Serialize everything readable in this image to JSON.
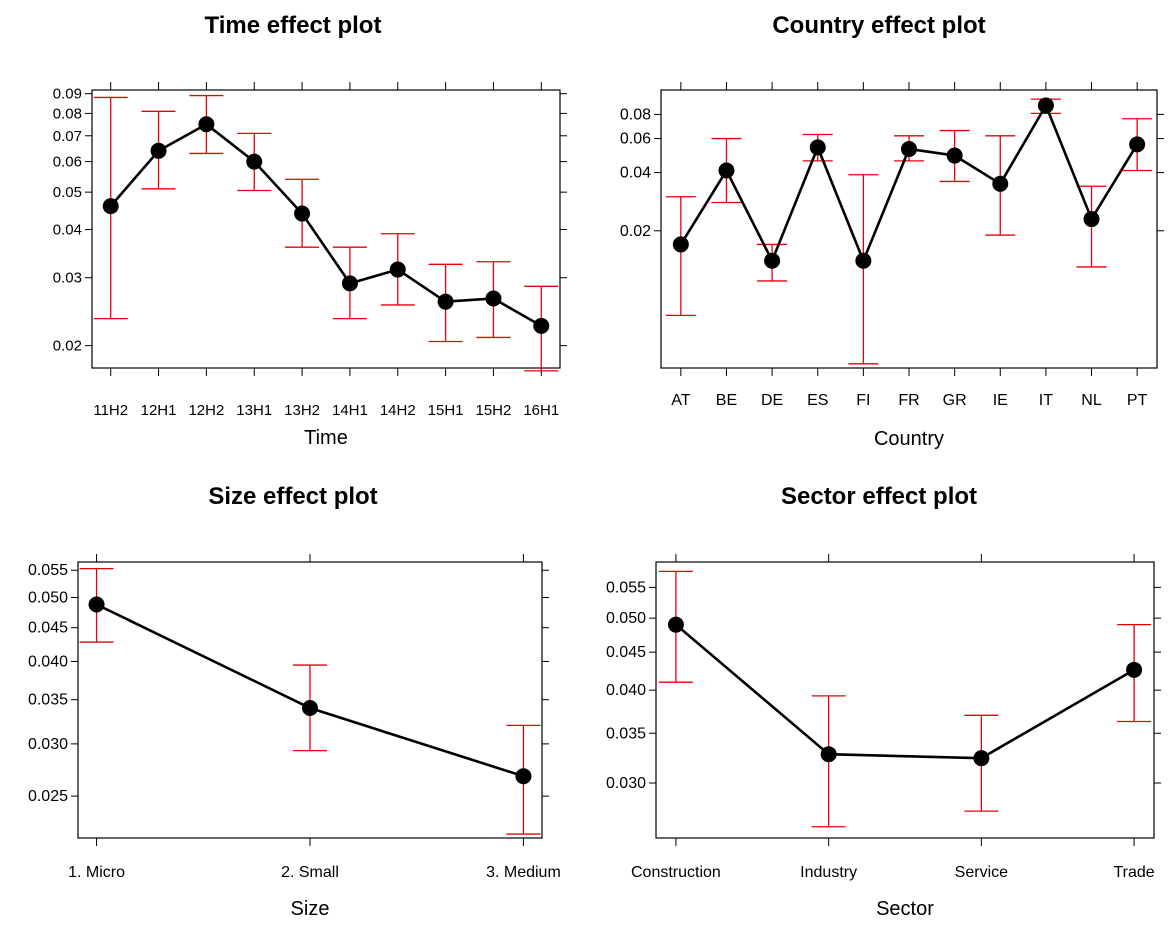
{
  "colors": {
    "line": "#000000",
    "errorbar": "#e8000b",
    "frame": "#000000",
    "background": "#ffffff"
  },
  "chart_data": [
    {
      "type": "line",
      "title": "Time effect plot",
      "xlabel": "Time",
      "ylabel": "",
      "log_scale_y": true,
      "ylim": [
        0.0175,
        0.092
      ],
      "yticks": [
        0.02,
        0.03,
        0.04,
        0.05,
        0.06,
        0.07,
        0.08,
        0.09
      ],
      "ytick_labels": [
        "0.02",
        "0.03",
        "0.04",
        "0.05",
        "0.06",
        "0.07",
        "0.08",
        "0.09"
      ],
      "categories": [
        "11H2",
        "12H1",
        "12H2",
        "13H1",
        "13H2",
        "14H1",
        "14H2",
        "15H1",
        "15H2",
        "16H1"
      ],
      "values": [
        0.046,
        0.064,
        0.075,
        0.06,
        0.044,
        0.029,
        0.0315,
        0.026,
        0.0265,
        0.0225
      ],
      "lower": [
        0.0235,
        0.051,
        0.063,
        0.0505,
        0.036,
        0.0235,
        0.0255,
        0.0205,
        0.021,
        0.0172
      ],
      "upper": [
        0.088,
        0.081,
        0.089,
        0.071,
        0.054,
        0.036,
        0.039,
        0.0325,
        0.033,
        0.0285
      ],
      "grid": false
    },
    {
      "type": "line",
      "title": "Country effect plot",
      "xlabel": "Country",
      "ylabel": "",
      "log_scale_y": true,
      "ylim": [
        0.0039,
        0.107
      ],
      "yticks": [
        0.02,
        0.04,
        0.06,
        0.08
      ],
      "ytick_labels": [
        "0.02",
        "0.04",
        "0.06",
        "0.08"
      ],
      "categories": [
        "AT",
        "BE",
        "DE",
        "ES",
        "FI",
        "FR",
        "GR",
        "IE",
        "IT",
        "NL",
        "PT"
      ],
      "values": [
        0.017,
        0.041,
        0.014,
        0.054,
        0.014,
        0.053,
        0.049,
        0.035,
        0.089,
        0.023,
        0.056
      ],
      "lower": [
        0.0073,
        0.028,
        0.011,
        0.046,
        0.0041,
        0.046,
        0.036,
        0.019,
        0.081,
        0.013,
        0.041
      ],
      "upper": [
        0.03,
        0.06,
        0.017,
        0.063,
        0.039,
        0.062,
        0.066,
        0.062,
        0.096,
        0.034,
        0.076
      ],
      "grid": false
    },
    {
      "type": "line",
      "title": "Size effect plot",
      "xlabel": "Size",
      "ylabel": "",
      "log_scale_y": true,
      "ylim": [
        0.0216,
        0.0566
      ],
      "yticks": [
        0.025,
        0.03,
        0.035,
        0.04,
        0.045,
        0.05,
        0.055
      ],
      "ytick_labels": [
        "0.025",
        "0.030",
        "0.035",
        "0.040",
        "0.045",
        "0.050",
        "0.055"
      ],
      "categories": [
        "1. Micro",
        "2. Small",
        "3. Medium"
      ],
      "values": [
        0.0488,
        0.034,
        0.0268
      ],
      "lower": [
        0.0428,
        0.0293,
        0.0219
      ],
      "upper": [
        0.0553,
        0.0395,
        0.032
      ],
      "grid": false
    },
    {
      "type": "line",
      "title": "Sector effect plot",
      "xlabel": "Sector",
      "ylabel": "",
      "log_scale_y": true,
      "ylim": [
        0.0253,
        0.0595
      ],
      "yticks": [
        0.03,
        0.035,
        0.04,
        0.045,
        0.05,
        0.055
      ],
      "ytick_labels": [
        "0.030",
        "0.035",
        "0.040",
        "0.045",
        "0.050",
        "0.055"
      ],
      "categories": [
        "Construction",
        "Industry",
        "Service",
        "Trade"
      ],
      "values": [
        0.049,
        0.0328,
        0.0324,
        0.0426
      ],
      "lower": [
        0.041,
        0.0262,
        0.0275,
        0.0363
      ],
      "upper": [
        0.0578,
        0.0393,
        0.037,
        0.049
      ],
      "grid": false
    }
  ]
}
